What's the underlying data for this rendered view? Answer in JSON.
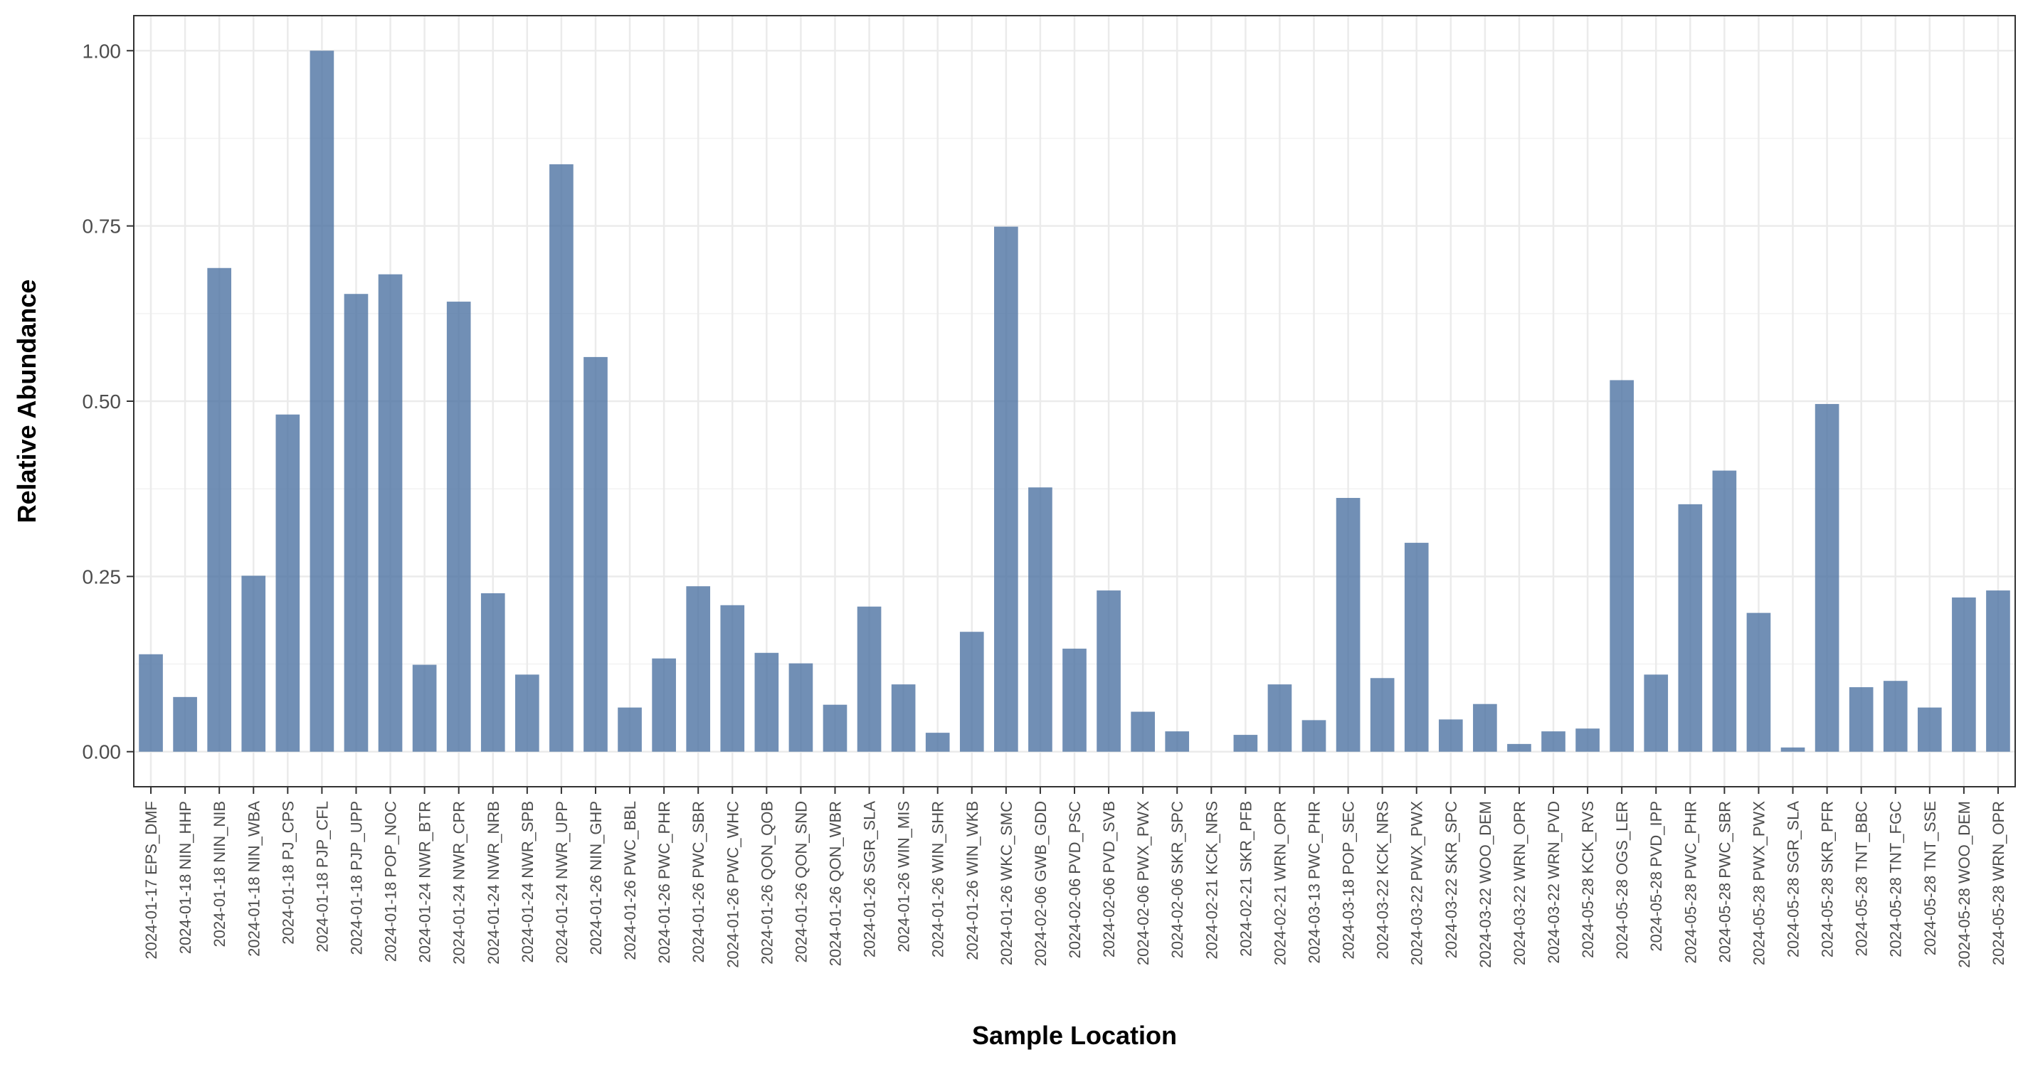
{
  "chart_data": {
    "type": "bar",
    "xlabel": "Sample Location",
    "ylabel": "Relative Abundance",
    "ylim": [
      -0.05,
      1.05
    ],
    "y_ticks": [
      0.0,
      0.25,
      0.5,
      0.75,
      1.0
    ],
    "y_tick_labels": [
      "0.00",
      "0.25",
      "0.50",
      "0.75",
      "1.00"
    ],
    "grid": true,
    "bar_color": "#4e73a3",
    "categories": [
      "2024-01-17 EPS_DMF",
      "2024-01-18 NIN_HHP",
      "2024-01-18 NIN_NIB",
      "2024-01-18 NIN_WBA",
      "2024-01-18 PJ_CPS",
      "2024-01-18 PJP_CFL",
      "2024-01-18 PJP_UPP",
      "2024-01-18 POP_NOC",
      "2024-01-24 NWR_BTR",
      "2024-01-24 NWR_CPR",
      "2024-01-24 NWR_NRB",
      "2024-01-24 NWR_SPB",
      "2024-01-24 NWR_UPP",
      "2024-01-26 NIN_GHP",
      "2024-01-26 PWC_BBL",
      "2024-01-26 PWC_PHR",
      "2024-01-26 PWC_SBR",
      "2024-01-26 PWC_WHC",
      "2024-01-26 QON_QOB",
      "2024-01-26 QON_SND",
      "2024-01-26 QON_WBR",
      "2024-01-26 SGR_SLA",
      "2024-01-26 WIN_MIS",
      "2024-01-26 WIN_SHR",
      "2024-01-26 WIN_WKB",
      "2024-01-26 WKC_SMC",
      "2024-02-06 GWB_GDD",
      "2024-02-06 PVD_PSC",
      "2024-02-06 PVD_SVB",
      "2024-02-06 PWX_PWX",
      "2024-02-06 SKR_SPC",
      "2024-02-21 KCK_NRS",
      "2024-02-21 SKR_PFB",
      "2024-02-21 WRN_OPR",
      "2024-03-13 PWC_PHR",
      "2024-03-18 POP_SEC",
      "2024-03-22 KCK_NRS",
      "2024-03-22 PWX_PWX",
      "2024-03-22 SKR_SPC",
      "2024-03-22 WOO_DEM",
      "2024-03-22 WRN_OPR",
      "2024-03-22 WRN_PVD",
      "2024-05-28 KCK_RVS",
      "2024-05-28 OGS_LER",
      "2024-05-28 PVD_IPP",
      "2024-05-28 PWC_PHR",
      "2024-05-28 PWC_SBR",
      "2024-05-28 PWX_PWX",
      "2024-05-28 SGR_SLA",
      "2024-05-28 SKR_PFR",
      "2024-05-28 TNT_BBC",
      "2024-05-28 TNT_FGC",
      "2024-05-28 TNT_SSE",
      "2024-05-28 WOO_DEM",
      "2024-05-28 WRN_OPR"
    ],
    "values": [
      0.139,
      0.078,
      0.69,
      0.251,
      0.481,
      1.0,
      0.653,
      0.681,
      0.124,
      0.642,
      0.226,
      0.11,
      0.838,
      0.563,
      0.063,
      0.133,
      0.236,
      0.209,
      0.141,
      0.126,
      0.067,
      0.207,
      0.096,
      0.027,
      0.171,
      0.749,
      0.377,
      0.147,
      0.23,
      0.057,
      0.029,
      0.0,
      0.024,
      0.096,
      0.045,
      0.362,
      0.105,
      0.298,
      0.046,
      0.068,
      0.011,
      0.029,
      0.033,
      0.53,
      0.11,
      0.353,
      0.401,
      0.198,
      0.006,
      0.496,
      0.092,
      0.101,
      0.063,
      0.22,
      0.23
    ]
  }
}
